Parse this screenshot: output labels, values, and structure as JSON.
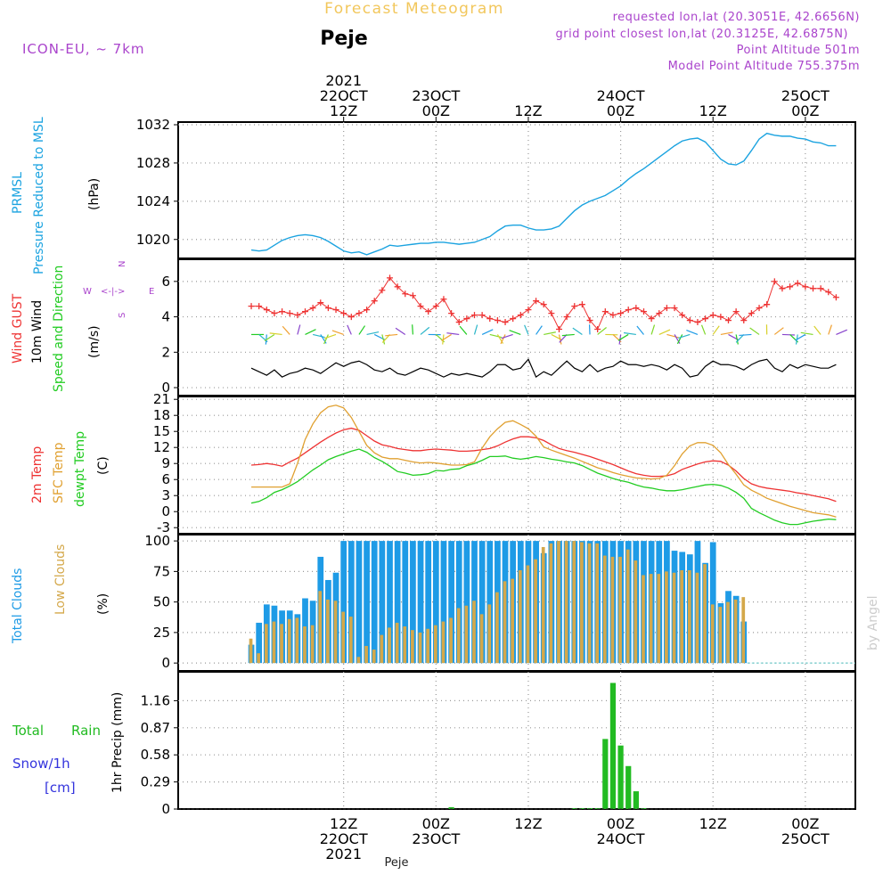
{
  "header": {
    "title": "Forecast Meteogram",
    "location": "Peje",
    "model": "ICON-EU, ~ 7km",
    "requested": "requested lon,lat (20.3051E, 42.6656N)",
    "gridpoint": "grid point closest lon,lat (20.3125E, 42.6875N)",
    "altitude": "Point Altitude 501m",
    "model_altitude": "Model Point Altitude 755.375m",
    "footer_location": "Peje",
    "watermark": "by Angel"
  },
  "colors": {
    "pressure": "#1ba3e0",
    "gust": "#ee3333",
    "wind": "#000000",
    "temp": "#ee3333",
    "sfc": "#e0a030",
    "dewpt": "#22cc22",
    "total_clouds": "#1e9be6",
    "low_clouds": "#d4a84a",
    "rain": "#22bb22",
    "snow": "#3333dd",
    "purple": "#aa44cc"
  },
  "time_axis": {
    "top_labels": [
      {
        "h": 12,
        "lines": [
          "2021",
          "22OCT",
          "12Z"
        ]
      },
      {
        "h": 24,
        "lines": [
          "23OCT",
          "00Z"
        ]
      },
      {
        "h": 36,
        "lines": [
          "12Z"
        ]
      },
      {
        "h": 48,
        "lines": [
          "24OCT",
          "00Z"
        ]
      },
      {
        "h": 60,
        "lines": [
          "12Z"
        ]
      },
      {
        "h": 72,
        "lines": [
          "25OCT",
          "00Z"
        ]
      }
    ],
    "bottom_labels": [
      {
        "h": 12,
        "lines": [
          "12Z",
          "22OCT",
          "2021"
        ]
      },
      {
        "h": 24,
        "lines": [
          "00Z",
          "23OCT"
        ]
      },
      {
        "h": 36,
        "lines": [
          "12Z"
        ]
      },
      {
        "h": 48,
        "lines": [
          "00Z",
          "24OCT"
        ]
      },
      {
        "h": 60,
        "lines": [
          "12Z"
        ]
      },
      {
        "h": 72,
        "lines": [
          "00Z",
          "25OCT"
        ]
      }
    ]
  },
  "panels": {
    "pressure": {
      "label1": "PRMSL",
      "label2": "Pressure Reduced to MSL",
      "unit": "(hPa)"
    },
    "wind": {
      "label_gust": "Wind GUST",
      "label_wind": "10m Wind",
      "label_dir": "Speed and Direction",
      "unit": "(m/s)",
      "compass_w": "W",
      "compass_e": "E",
      "compass_n": "N",
      "compass_s": "S",
      "compass_arrow": "<-|->"
    },
    "temp": {
      "label_t": "2m Temp",
      "label_sfc": "SFC Temp",
      "label_dew": "dewpt Temp",
      "unit": "(C)"
    },
    "clouds": {
      "label_total": "Total Clouds",
      "label_low": "Low Clouds",
      "unit": "(%)"
    },
    "precip": {
      "label_rain": "Total",
      "label_rain2": "Rain",
      "label_snow": "Snow/1h",
      "label_snow_unit": "[cm]",
      "axis_label": "1hr Precip (mm)"
    }
  },
  "chart_data": [
    {
      "type": "line",
      "name": "pressure",
      "ylim": [
        1018.3,
        1032
      ],
      "yticks": [
        1020,
        1024,
        1028,
        1032
      ],
      "x_hours": [
        0,
        1,
        2,
        3,
        4,
        5,
        6,
        7,
        8,
        9,
        10,
        11,
        12,
        13,
        14,
        15,
        16,
        17,
        18,
        19,
        20,
        21,
        22,
        23,
        24,
        25,
        26,
        27,
        28,
        29,
        30,
        31,
        32,
        33,
        34,
        35,
        36,
        37,
        38,
        39,
        40,
        41,
        42,
        43,
        44,
        45,
        46,
        47,
        48,
        49,
        50,
        51,
        52,
        53,
        54,
        55,
        56,
        57,
        58,
        59,
        60,
        61,
        62,
        63,
        64,
        65,
        66,
        67,
        68,
        69,
        70,
        71,
        72,
        73,
        74,
        75,
        76
      ],
      "values": [
        1018.9,
        1018.8,
        1018.9,
        1019.4,
        1019.9,
        1020.2,
        1020.4,
        1020.5,
        1020.4,
        1020.2,
        1019.8,
        1019.3,
        1018.8,
        1018.6,
        1018.7,
        1018.4,
        1018.7,
        1019.0,
        1019.4,
        1019.3,
        1019.4,
        1019.5,
        1019.6,
        1019.6,
        1019.7,
        1019.7,
        1019.6,
        1019.5,
        1019.6,
        1019.7,
        1020.0,
        1020.3,
        1020.9,
        1021.4,
        1021.5,
        1021.5,
        1021.2,
        1021.0,
        1021.0,
        1021.1,
        1021.4,
        1022.2,
        1023.0,
        1023.6,
        1024.0,
        1024.3,
        1024.6,
        1025.1,
        1025.6,
        1026.3,
        1026.9,
        1027.4,
        1028.0,
        1028.6,
        1029.2,
        1029.8,
        1030.3,
        1030.5,
        1030.6,
        1030.2,
        1029.3,
        1028.4,
        1027.9,
        1027.8,
        1028.2,
        1029.3,
        1030.5,
        1031.1,
        1030.9,
        1030.8,
        1030.8,
        1030.6,
        1030.5,
        1030.2,
        1030.1,
        1029.8,
        1029.8
      ]
    },
    {
      "type": "line",
      "name": "wind",
      "ylim": [
        -0.3,
        7.1
      ],
      "yticks": [
        0,
        2,
        4,
        6
      ],
      "x_hours": [
        0,
        1,
        2,
        3,
        4,
        5,
        6,
        7,
        8,
        9,
        10,
        11,
        12,
        13,
        14,
        15,
        16,
        17,
        18,
        19,
        20,
        21,
        22,
        23,
        24,
        25,
        26,
        27,
        28,
        29,
        30,
        31,
        32,
        33,
        34,
        35,
        36,
        37,
        38,
        39,
        40,
        41,
        42,
        43,
        44,
        45,
        46,
        47,
        48,
        49,
        50,
        51,
        52,
        53,
        54,
        55,
        56,
        57,
        58,
        59,
        60,
        61,
        62,
        63,
        64,
        65,
        66,
        67,
        68,
        69,
        70,
        71,
        72,
        73,
        74,
        75,
        76
      ],
      "series": [
        {
          "name": "Wind GUST",
          "values": [
            4.6,
            4.6,
            4.4,
            4.2,
            4.3,
            4.2,
            4.1,
            4.3,
            4.5,
            4.8,
            4.5,
            4.4,
            4.2,
            4.0,
            4.2,
            4.4,
            4.9,
            5.5,
            6.2,
            5.7,
            5.3,
            5.2,
            4.6,
            4.3,
            4.6,
            5.0,
            4.2,
            3.7,
            3.9,
            4.1,
            4.1,
            3.9,
            3.8,
            3.7,
            3.9,
            4.1,
            4.4,
            4.9,
            4.7,
            4.2,
            3.3,
            4.0,
            4.6,
            4.7,
            3.8,
            3.3,
            4.3,
            4.1,
            4.2,
            4.4,
            4.5,
            4.3,
            3.9,
            4.2,
            4.5,
            4.5,
            4.1,
            3.8,
            3.7,
            3.9,
            4.1,
            4.0,
            3.8,
            4.3,
            3.8,
            4.2,
            4.5,
            4.7,
            6.0,
            5.6,
            5.7,
            5.9,
            5.7,
            5.6,
            5.6,
            5.4,
            5.1
          ]
        },
        {
          "name": "10m Wind",
          "values": [
            1.1,
            0.9,
            0.7,
            1.0,
            0.6,
            0.8,
            0.9,
            1.1,
            1.0,
            0.8,
            1.1,
            1.4,
            1.2,
            1.4,
            1.5,
            1.3,
            1.0,
            0.9,
            1.1,
            0.8,
            0.7,
            0.9,
            1.1,
            1.0,
            0.8,
            0.6,
            0.8,
            0.7,
            0.8,
            0.7,
            0.6,
            0.9,
            1.3,
            1.3,
            1.0,
            1.1,
            1.6,
            0.6,
            0.9,
            0.7,
            1.1,
            1.5,
            1.1,
            0.9,
            1.3,
            0.9,
            1.1,
            1.2,
            1.5,
            1.3,
            1.3,
            1.2,
            1.3,
            1.2,
            1.0,
            1.3,
            1.1,
            0.6,
            0.7,
            1.2,
            1.5,
            1.3,
            1.3,
            1.2,
            1.0,
            1.3,
            1.5,
            1.6,
            1.1,
            0.9,
            1.3,
            1.1,
            1.3,
            1.2,
            1.1,
            1.1,
            1.3
          ]
        }
      ]
    },
    {
      "type": "line",
      "name": "temperature",
      "ylim": [
        -3.8,
        21.2
      ],
      "yticks": [
        -3,
        0,
        3,
        6,
        9,
        12,
        15,
        18,
        21
      ],
      "x_hours": [
        0,
        1,
        2,
        3,
        4,
        5,
        6,
        7,
        8,
        9,
        10,
        11,
        12,
        13,
        14,
        15,
        16,
        17,
        18,
        19,
        20,
        21,
        22,
        23,
        24,
        25,
        26,
        27,
        28,
        29,
        30,
        31,
        32,
        33,
        34,
        35,
        36,
        37,
        38,
        39,
        40,
        41,
        42,
        43,
        44,
        45,
        46,
        47,
        48,
        49,
        50,
        51,
        52,
        53,
        54,
        55,
        56,
        57,
        58,
        59,
        60,
        61,
        62,
        63,
        64,
        65,
        66,
        67,
        68,
        69,
        70,
        71,
        72,
        73,
        74,
        75,
        76
      ],
      "series": [
        {
          "name": "2m Temp",
          "values": [
            8.7,
            8.8,
            9.0,
            8.8,
            8.5,
            9.3,
            10.0,
            11.0,
            12.0,
            13.0,
            13.9,
            14.7,
            15.3,
            15.6,
            15.2,
            14.2,
            13.2,
            12.5,
            12.2,
            11.8,
            11.6,
            11.4,
            11.4,
            11.6,
            11.7,
            11.6,
            11.5,
            11.3,
            11.3,
            11.4,
            11.6,
            11.8,
            12.3,
            13.0,
            13.6,
            14.0,
            14.0,
            13.8,
            13.3,
            12.5,
            11.8,
            11.4,
            11.1,
            10.7,
            10.3,
            9.8,
            9.3,
            8.8,
            8.2,
            7.6,
            7.1,
            6.8,
            6.6,
            6.6,
            6.7,
            7.1,
            7.9,
            8.4,
            8.9,
            9.3,
            9.5,
            9.4,
            8.7,
            7.6,
            6.2,
            5.2,
            4.7,
            4.4,
            4.2,
            4.0,
            3.8,
            3.5,
            3.3,
            3.0,
            2.7,
            2.4,
            1.9
          ]
        },
        {
          "name": "SFC Temp",
          "values": [
            4.6,
            4.6,
            4.6,
            4.6,
            4.6,
            5.2,
            9.0,
            13.5,
            16.4,
            18.5,
            19.6,
            19.9,
            19.4,
            17.6,
            15.0,
            12.4,
            11.0,
            10.2,
            9.9,
            9.9,
            9.6,
            9.3,
            9.1,
            9.2,
            9.1,
            8.9,
            8.7,
            8.7,
            8.8,
            9.3,
            11.9,
            14.0,
            15.5,
            16.7,
            17.0,
            16.3,
            15.5,
            14.1,
            12.1,
            11.5,
            11.0,
            10.5,
            10.0,
            9.4,
            8.8,
            8.2,
            7.8,
            7.3,
            6.9,
            6.6,
            6.3,
            6.2,
            6.1,
            6.2,
            6.8,
            8.6,
            10.8,
            12.3,
            12.9,
            12.9,
            12.4,
            11.0,
            8.8,
            7.0,
            5.0,
            4.0,
            3.3,
            2.5,
            2.0,
            1.5,
            1.0,
            0.6,
            0.2,
            -0.2,
            -0.4,
            -0.6,
            -1.0
          ]
        },
        {
          "name": "dewpt Temp",
          "values": [
            1.6,
            1.9,
            2.6,
            3.6,
            4.1,
            4.8,
            5.6,
            6.7,
            7.8,
            8.7,
            9.7,
            10.3,
            10.8,
            11.3,
            11.7,
            11.1,
            10.1,
            9.4,
            8.5,
            7.5,
            7.2,
            6.8,
            6.9,
            7.1,
            7.7,
            7.6,
            7.9,
            8.0,
            8.6,
            9.0,
            9.6,
            10.3,
            10.3,
            10.4,
            10.0,
            9.8,
            10.0,
            10.3,
            10.1,
            9.8,
            9.6,
            9.3,
            9.1,
            8.6,
            7.9,
            7.2,
            6.7,
            6.2,
            5.8,
            5.5,
            5.0,
            4.6,
            4.4,
            4.1,
            3.9,
            3.9,
            4.1,
            4.4,
            4.7,
            5.0,
            5.1,
            4.9,
            4.4,
            3.6,
            2.5,
            0.6,
            -0.2,
            -0.9,
            -1.6,
            -2.1,
            -2.4,
            -2.4,
            -2.1,
            -1.8,
            -1.6,
            -1.4,
            -1.5
          ]
        }
      ]
    },
    {
      "type": "bar",
      "name": "clouds",
      "ylim": [
        -5,
        103
      ],
      "yticks": [
        0,
        25,
        50,
        75,
        100
      ],
      "x_hours": [
        0,
        1,
        2,
        3,
        4,
        5,
        6,
        7,
        8,
        9,
        10,
        11,
        12,
        13,
        14,
        15,
        16,
        17,
        18,
        19,
        20,
        21,
        22,
        23,
        24,
        25,
        26,
        27,
        28,
        29,
        30,
        31,
        32,
        33,
        34,
        35,
        36,
        37,
        38,
        39,
        40,
        41,
        42,
        43,
        44,
        45,
        46,
        47,
        48,
        49,
        50,
        51,
        52,
        53,
        54,
        55,
        56,
        57,
        58,
        59,
        60,
        61,
        62,
        63,
        64
      ],
      "series": [
        {
          "name": "Total Clouds",
          "values": [
            15,
            33,
            48,
            47,
            43,
            43,
            40,
            53,
            51,
            87,
            68,
            74,
            100,
            100,
            100,
            100,
            100,
            100,
            100,
            100,
            100,
            100,
            100,
            100,
            100,
            100,
            100,
            100,
            100,
            100,
            100,
            100,
            100,
            100,
            100,
            100,
            100,
            100,
            90,
            100,
            100,
            100,
            100,
            100,
            100,
            100,
            100,
            100,
            100,
            100,
            100,
            100,
            100,
            100,
            100,
            92,
            91,
            89,
            100,
            82,
            99,
            49,
            59,
            55,
            34
          ]
        },
        {
          "name": "Low Clouds",
          "values": [
            20,
            8,
            32,
            34,
            32,
            36,
            37,
            30,
            31,
            59,
            52,
            51,
            42,
            38,
            5,
            14,
            11,
            23,
            29,
            33,
            30,
            27,
            25,
            28,
            31,
            34,
            37,
            45,
            47,
            51,
            40,
            48,
            58,
            67,
            69,
            76,
            80,
            85,
            95,
            98,
            100,
            100,
            100,
            99,
            98,
            98,
            88,
            87,
            87,
            93,
            84,
            72,
            73,
            73,
            75,
            74,
            76,
            76,
            74,
            81,
            48,
            46,
            50,
            52,
            54
          ]
        }
      ]
    },
    {
      "type": "bar",
      "name": "precipitation",
      "ylim": [
        0,
        1.45
      ],
      "yticks": [
        0,
        0.29,
        0.58,
        0.87,
        1.16
      ],
      "x_hours": [
        26,
        42,
        43,
        44,
        45,
        46,
        47,
        48,
        49,
        50,
        51
      ],
      "series": [
        {
          "name": "Total Rain",
          "values": [
            0.02,
            0.01,
            0.01,
            0.01,
            0.01,
            0.75,
            1.35,
            0.68,
            0.46,
            0.19,
            0.01
          ]
        }
      ]
    }
  ]
}
